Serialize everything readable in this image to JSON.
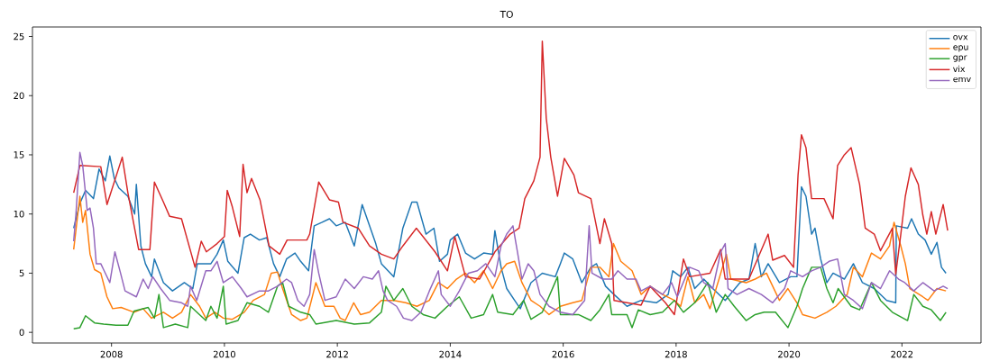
{
  "chart_data": {
    "type": "line",
    "title": "TO",
    "xlim": [
      2006.6,
      2023.4
    ],
    "xticks": [
      2008,
      2010,
      2012,
      2014,
      2016,
      2018,
      2020,
      2022
    ],
    "ylim": [
      -0.9,
      25.8
    ],
    "yticks": [
      0,
      5,
      10,
      15,
      20,
      25
    ],
    "legend": "top right",
    "grid": false,
    "marker": "none",
    "line_style": "solid",
    "series": [
      {
        "name": "ovx",
        "color": "#1f77b4",
        "x": [
          2007.33,
          2007.44,
          2007.54,
          2007.68,
          2007.78,
          2007.89,
          2007.97,
          2008.05,
          2008.13,
          2008.29,
          2008.41,
          2008.44,
          2008.52,
          2008.6,
          2008.71,
          2008.76,
          2008.92,
          2009.08,
          2009.29,
          2009.44,
          2009.52,
          2009.76,
          2009.87,
          2009.98,
          2010.06,
          2010.24,
          2010.35,
          2010.46,
          2010.62,
          2010.75,
          2010.87,
          2010.98,
          2011.1,
          2011.25,
          2011.35,
          2011.49,
          2011.59,
          2011.73,
          2011.86,
          2011.98,
          2012.14,
          2012.3,
          2012.44,
          2012.68,
          2012.78,
          2013.0,
          2013.16,
          2013.32,
          2013.41,
          2013.57,
          2013.71,
          2013.81,
          2013.95,
          2014.0,
          2014.13,
          2014.27,
          2014.43,
          2014.59,
          2014.75,
          2014.79,
          2014.9,
          2015.0,
          2015.14,
          2015.24,
          2015.43,
          2015.63,
          2015.86,
          2015.95,
          2016.02,
          2016.17,
          2016.33,
          2016.49,
          2016.59,
          2016.75,
          2016.9,
          2017.13,
          2017.38,
          2017.65,
          2017.86,
          2017.94,
          2018.08,
          2018.21,
          2018.33,
          2018.49,
          2018.65,
          2018.87,
          2019.13,
          2019.29,
          2019.4,
          2019.51,
          2019.63,
          2019.83,
          2020.03,
          2020.14,
          2020.22,
          2020.3,
          2020.4,
          2020.46,
          2020.56,
          2020.67,
          2020.78,
          2020.98,
          2021.14,
          2021.3,
          2021.51,
          2021.73,
          2021.89,
          2021.9,
          2022.1,
          2022.17,
          2022.29,
          2022.41,
          2022.52,
          2022.62,
          2022.7,
          2022.78
        ],
        "values": [
          8.8,
          10.9,
          12.0,
          11.3,
          13.8,
          12.8,
          14.9,
          13.0,
          12.2,
          11.5,
          10.0,
          12.5,
          7.3,
          5.8,
          4.7,
          6.2,
          4.2,
          3.5,
          4.2,
          3.7,
          5.8,
          5.8,
          6.6,
          7.8,
          6.0,
          5.0,
          8.0,
          8.3,
          7.8,
          8.0,
          5.8,
          4.7,
          6.2,
          6.7,
          6.0,
          5.2,
          9.0,
          9.3,
          9.6,
          9.0,
          9.3,
          7.3,
          10.8,
          7.5,
          5.8,
          4.7,
          8.8,
          11.0,
          11.0,
          8.3,
          8.8,
          6.0,
          6.6,
          7.8,
          8.3,
          6.7,
          6.2,
          6.7,
          6.6,
          8.6,
          5.5,
          3.7,
          2.7,
          2.0,
          4.2,
          5.0,
          4.7,
          5.8,
          6.7,
          6.2,
          4.2,
          5.5,
          5.8,
          3.9,
          3.2,
          2.2,
          2.7,
          2.5,
          3.2,
          5.2,
          4.7,
          5.5,
          3.7,
          4.5,
          3.7,
          2.7,
          4.2,
          4.5,
          7.5,
          4.7,
          5.8,
          4.2,
          4.7,
          4.7,
          12.3,
          11.5,
          8.3,
          8.8,
          6.2,
          4.2,
          5.0,
          4.5,
          5.8,
          4.2,
          3.7,
          2.7,
          2.5,
          9.0,
          8.8,
          9.6,
          8.3,
          7.8,
          6.6,
          7.6,
          5.5,
          5.0
        ]
      },
      {
        "name": "epu",
        "color": "#ff7f0e",
        "x": [
          2007.33,
          2007.44,
          2007.49,
          2007.54,
          2007.62,
          2007.7,
          2007.81,
          2007.92,
          2008.02,
          2008.17,
          2008.4,
          2008.56,
          2008.71,
          2008.92,
          2009.08,
          2009.24,
          2009.4,
          2009.56,
          2009.67,
          2009.83,
          2009.98,
          2010.14,
          2010.35,
          2010.51,
          2010.71,
          2010.83,
          2010.94,
          2011.03,
          2011.19,
          2011.35,
          2011.46,
          2011.62,
          2011.78,
          2011.94,
          2012.05,
          2012.14,
          2012.29,
          2012.41,
          2012.57,
          2012.78,
          2013.0,
          2013.21,
          2013.41,
          2013.63,
          2013.79,
          2013.95,
          2014.11,
          2014.27,
          2014.43,
          2014.59,
          2014.75,
          2014.9,
          2015.0,
          2015.14,
          2015.27,
          2015.43,
          2015.59,
          2015.75,
          2015.95,
          2016.17,
          2016.33,
          2016.49,
          2016.65,
          2016.81,
          2016.89,
          2017.02,
          2017.22,
          2017.38,
          2017.54,
          2017.76,
          2017.97,
          2018.08,
          2018.21,
          2018.33,
          2018.49,
          2018.6,
          2018.76,
          2018.89,
          2018.97,
          2019.24,
          2019.4,
          2019.6,
          2019.83,
          2019.98,
          2020.14,
          2020.24,
          2020.46,
          2020.67,
          2020.83,
          2021.03,
          2021.14,
          2021.3,
          2021.46,
          2021.62,
          2021.78,
          2021.86,
          2021.98,
          2022.06,
          2022.14,
          2022.37,
          2022.46,
          2022.62,
          2022.78
        ],
        "values": [
          7.0,
          11.5,
          9.3,
          10.3,
          6.6,
          5.3,
          5.0,
          3.0,
          2.0,
          2.1,
          1.7,
          2.0,
          1.2,
          1.7,
          1.2,
          1.7,
          3.2,
          2.2,
          1.2,
          1.7,
          1.2,
          1.1,
          1.7,
          2.7,
          3.2,
          5.0,
          5.1,
          3.7,
          1.5,
          1.0,
          1.2,
          4.2,
          2.2,
          2.2,
          1.2,
          1.0,
          2.5,
          1.5,
          1.7,
          2.7,
          2.7,
          2.5,
          2.2,
          2.7,
          4.2,
          3.7,
          4.5,
          5.0,
          4.2,
          5.2,
          3.7,
          5.2,
          5.8,
          6.0,
          4.2,
          2.7,
          2.2,
          1.5,
          2.2,
          2.5,
          2.7,
          5.5,
          5.5,
          4.7,
          7.5,
          6.0,
          5.2,
          3.2,
          3.9,
          3.2,
          2.7,
          2.2,
          4.7,
          2.5,
          3.2,
          2.0,
          4.5,
          6.6,
          4.5,
          4.2,
          4.5,
          5.0,
          2.7,
          3.7,
          2.5,
          1.5,
          1.2,
          1.7,
          2.2,
          3.2,
          5.5,
          4.7,
          6.7,
          6.2,
          7.3,
          9.3,
          7.3,
          5.8,
          3.7,
          3.0,
          2.7,
          3.7,
          3.5
        ]
      },
      {
        "name": "gpr",
        "color": "#2ca02c",
        "x": [
          2007.33,
          2007.44,
          2007.54,
          2007.7,
          2007.86,
          2008.08,
          2008.29,
          2008.4,
          2008.65,
          2008.76,
          2008.84,
          2008.92,
          2009.13,
          2009.35,
          2009.4,
          2009.67,
          2009.76,
          2009.87,
          2009.98,
          2010.03,
          2010.24,
          2010.4,
          2010.62,
          2010.78,
          2010.94,
          2011.03,
          2011.14,
          2011.35,
          2011.51,
          2011.62,
          2011.98,
          2012.3,
          2012.57,
          2012.78,
          2012.86,
          2013.0,
          2013.16,
          2013.32,
          2013.52,
          2013.73,
          2013.95,
          2014.16,
          2014.37,
          2014.59,
          2014.75,
          2014.84,
          2015.11,
          2015.3,
          2015.43,
          2015.63,
          2015.9,
          2015.95,
          2016.27,
          2016.49,
          2016.65,
          2016.81,
          2016.86,
          2017.13,
          2017.22,
          2017.33,
          2017.54,
          2017.76,
          2017.97,
          2018.13,
          2018.33,
          2018.56,
          2018.71,
          2018.87,
          2019.03,
          2019.24,
          2019.4,
          2019.56,
          2019.76,
          2019.98,
          2020.14,
          2020.24,
          2020.4,
          2020.56,
          2020.67,
          2020.78,
          2020.87,
          2021.1,
          2021.25,
          2021.46,
          2021.62,
          2021.83,
          2022.1,
          2022.21,
          2022.37,
          2022.52,
          2022.68,
          2022.78
        ],
        "values": [
          0.3,
          0.4,
          1.4,
          0.8,
          0.7,
          0.6,
          0.6,
          1.8,
          2.1,
          1.2,
          3.2,
          0.4,
          0.7,
          0.4,
          2.2,
          1.0,
          2.2,
          1.2,
          3.9,
          0.7,
          1.0,
          2.5,
          2.2,
          1.7,
          3.9,
          4.2,
          2.2,
          1.7,
          1.5,
          0.7,
          1.0,
          0.7,
          0.8,
          1.7,
          3.9,
          2.7,
          3.7,
          2.2,
          1.5,
          1.2,
          2.2,
          3.0,
          1.2,
          1.5,
          3.2,
          1.7,
          1.5,
          2.7,
          1.1,
          1.7,
          4.7,
          1.5,
          1.5,
          1.0,
          1.9,
          3.2,
          1.5,
          1.5,
          0.4,
          1.9,
          1.5,
          1.7,
          2.7,
          1.7,
          2.5,
          4.2,
          1.7,
          3.2,
          2.2,
          1.0,
          1.5,
          1.7,
          1.7,
          0.4,
          2.2,
          3.7,
          5.5,
          5.5,
          3.7,
          2.5,
          3.7,
          2.2,
          1.9,
          4.2,
          2.7,
          1.7,
          1.0,
          3.2,
          2.2,
          1.9,
          1.0,
          1.7
        ]
      },
      {
        "name": "vix",
        "color": "#d62728",
        "x": [
          2007.33,
          2007.44,
          2007.81,
          2007.92,
          2008.19,
          2008.29,
          2008.48,
          2008.68,
          2008.76,
          2008.92,
          2009.03,
          2009.24,
          2009.48,
          2009.59,
          2009.68,
          2009.87,
          2010.0,
          2010.05,
          2010.14,
          2010.27,
          2010.33,
          2010.4,
          2010.48,
          2010.63,
          2010.79,
          2010.98,
          2011.11,
          2011.46,
          2011.51,
          2011.67,
          2011.86,
          2012.02,
          2012.1,
          2012.37,
          2012.57,
          2012.78,
          2013.0,
          2013.16,
          2013.4,
          2013.73,
          2013.95,
          2014.08,
          2014.27,
          2014.52,
          2014.79,
          2015.06,
          2015.22,
          2015.32,
          2015.48,
          2015.59,
          2015.63,
          2015.7,
          2015.78,
          2015.9,
          2016.02,
          2016.19,
          2016.27,
          2016.49,
          2016.65,
          2016.73,
          2016.86,
          2016.9,
          2017.13,
          2017.38,
          2017.54,
          2017.81,
          2017.97,
          2018.13,
          2018.24,
          2018.6,
          2018.79,
          2018.87,
          2019.29,
          2019.63,
          2019.71,
          2019.92,
          2020.08,
          2020.16,
          2020.22,
          2020.3,
          2020.4,
          2020.62,
          2020.78,
          2020.86,
          2020.98,
          2021.1,
          2021.25,
          2021.35,
          2021.51,
          2021.62,
          2021.83,
          2021.89,
          2021.98,
          2022.06,
          2022.16,
          2022.29,
          2022.37,
          2022.44,
          2022.52,
          2022.6,
          2022.73,
          2022.81
        ],
        "values": [
          11.8,
          14.1,
          14.0,
          10.8,
          14.8,
          11.8,
          7.0,
          7.0,
          12.7,
          11.0,
          9.8,
          9.6,
          5.5,
          7.7,
          6.8,
          7.5,
          8.1,
          12.0,
          10.6,
          8.1,
          14.2,
          11.8,
          13.0,
          11.2,
          7.3,
          6.6,
          7.8,
          7.8,
          8.3,
          12.7,
          11.2,
          11.0,
          9.3,
          8.8,
          7.3,
          6.6,
          6.2,
          7.3,
          8.8,
          6.8,
          5.2,
          8.1,
          4.7,
          4.5,
          6.8,
          8.3,
          8.8,
          11.3,
          12.8,
          14.8,
          24.6,
          18.1,
          14.8,
          11.5,
          14.7,
          13.3,
          11.8,
          11.3,
          7.5,
          9.6,
          7.5,
          2.7,
          2.5,
          2.3,
          3.9,
          2.5,
          1.5,
          6.2,
          4.7,
          5.0,
          7.0,
          4.5,
          4.5,
          8.3,
          6.1,
          6.5,
          5.5,
          13.3,
          16.7,
          15.6,
          11.3,
          11.3,
          9.6,
          14.1,
          15.0,
          15.6,
          12.5,
          8.8,
          8.3,
          6.9,
          8.8,
          4.9,
          8.3,
          11.5,
          13.9,
          12.5,
          9.9,
          8.3,
          10.2,
          8.3,
          10.8,
          8.6
        ]
      },
      {
        "name": "emv",
        "color": "#9467bd",
        "x": [
          2007.33,
          2007.37,
          2007.44,
          2007.49,
          2007.57,
          2007.62,
          2007.68,
          2007.73,
          2007.81,
          2007.86,
          2007.97,
          2008.06,
          2008.16,
          2008.24,
          2008.44,
          2008.56,
          2008.65,
          2008.73,
          2008.87,
          2009.03,
          2009.24,
          2009.35,
          2009.4,
          2009.51,
          2009.67,
          2009.76,
          2009.87,
          2009.98,
          2010.14,
          2010.3,
          2010.4,
          2010.62,
          2010.78,
          2010.94,
          2011.1,
          2011.19,
          2011.3,
          2011.41,
          2011.51,
          2011.59,
          2011.67,
          2011.78,
          2011.98,
          2012.14,
          2012.3,
          2012.46,
          2012.62,
          2012.73,
          2012.81,
          2012.89,
          2013.05,
          2013.17,
          2013.32,
          2013.48,
          2013.63,
          2013.79,
          2013.84,
          2014.0,
          2014.16,
          2014.32,
          2014.48,
          2014.63,
          2014.79,
          2014.9,
          2015.0,
          2015.11,
          2015.19,
          2015.27,
          2015.38,
          2015.48,
          2015.59,
          2015.75,
          2015.95,
          2016.17,
          2016.38,
          2016.46,
          2016.51,
          2016.7,
          2016.86,
          2016.97,
          2017.13,
          2017.29,
          2017.38,
          2017.54,
          2017.76,
          2017.92,
          2018.02,
          2018.24,
          2018.4,
          2018.49,
          2018.65,
          2018.79,
          2018.87,
          2018.92,
          2019.08,
          2019.29,
          2019.51,
          2019.71,
          2019.92,
          2020.03,
          2020.24,
          2020.4,
          2020.56,
          2020.71,
          2020.86,
          2020.98,
          2021.14,
          2021.3,
          2021.46,
          2021.62,
          2021.78,
          2021.94,
          2022.05,
          2022.21,
          2022.37,
          2022.57,
          2022.73,
          2022.81
        ],
        "values": [
          7.7,
          10.0,
          15.2,
          14.1,
          10.3,
          10.5,
          8.8,
          5.8,
          5.8,
          5.3,
          4.2,
          6.8,
          5.0,
          3.5,
          3.0,
          4.5,
          3.7,
          4.7,
          3.7,
          2.7,
          2.5,
          2.2,
          3.9,
          2.7,
          5.2,
          5.2,
          6.0,
          4.2,
          4.7,
          3.7,
          3.0,
          3.5,
          3.5,
          3.9,
          4.5,
          4.2,
          2.7,
          2.2,
          3.2,
          7.0,
          5.0,
          2.7,
          3.0,
          4.5,
          3.7,
          4.7,
          4.5,
          5.2,
          3.5,
          2.7,
          2.2,
          1.2,
          1.0,
          1.7,
          3.5,
          5.2,
          3.2,
          2.2,
          3.5,
          5.0,
          5.2,
          5.8,
          4.7,
          7.3,
          8.3,
          9.0,
          6.8,
          4.5,
          5.8,
          5.2,
          3.2,
          2.2,
          1.7,
          1.5,
          2.7,
          9.0,
          5.0,
          4.5,
          4.5,
          5.2,
          4.5,
          4.5,
          3.5,
          3.9,
          3.2,
          4.2,
          3.0,
          5.5,
          5.2,
          4.2,
          3.7,
          6.8,
          7.5,
          3.7,
          3.2,
          3.7,
          3.2,
          2.5,
          3.7,
          5.2,
          4.7,
          5.2,
          5.5,
          6.0,
          6.2,
          3.2,
          2.7,
          2.0,
          4.2,
          3.7,
          5.2,
          4.5,
          4.2,
          3.5,
          4.2,
          3.5,
          3.9,
          3.7
        ]
      }
    ]
  }
}
